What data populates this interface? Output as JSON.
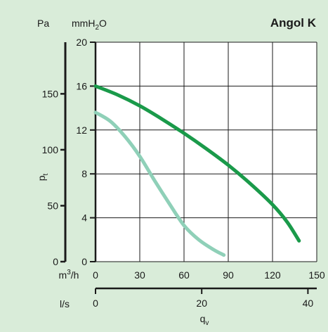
{
  "chart_data": {
    "type": "line",
    "title": "Angol K",
    "left_axis_unit": "Pa",
    "inner_axis_unit": "mmH",
    "inner_axis_unit_sub": "2",
    "inner_axis_unit_tail": "O",
    "ylabel_main": "p",
    "ylabel_sub": "t",
    "xlabel_main": "q",
    "xlabel_sub": "v",
    "x_unit_primary": "m",
    "x_unit_primary_sup": "3",
    "x_unit_primary_tail": "/h",
    "x_unit_secondary": "l/s",
    "xlim_m3h": [
      0,
      150
    ],
    "ylim_mmH2O": [
      0,
      20
    ],
    "x_ticks_m3h": [
      0,
      30,
      60,
      90,
      120,
      150
    ],
    "y_ticks_mmH2O": [
      0,
      4,
      8,
      12,
      16,
      20
    ],
    "y_ticks_pa": [
      0,
      50,
      100,
      150
    ],
    "x_ticks_ls": [
      0,
      20,
      40
    ],
    "grid": true,
    "series": [
      {
        "color": "#1a9a4a",
        "x": [
          0,
          15,
          30,
          45,
          60,
          75,
          90,
          105,
          120,
          130,
          138
        ],
        "y": [
          16,
          15.2,
          14.2,
          13.0,
          11.7,
          10.3,
          8.8,
          7.1,
          5.2,
          3.6,
          1.9
        ]
      },
      {
        "color": "#8fd0b8",
        "x": [
          0,
          10,
          20,
          30,
          40,
          50,
          60,
          70,
          80,
          87
        ],
        "y": [
          13.6,
          12.8,
          11.4,
          9.6,
          7.4,
          5.3,
          3.3,
          2.0,
          1.1,
          0.6
        ]
      }
    ]
  }
}
